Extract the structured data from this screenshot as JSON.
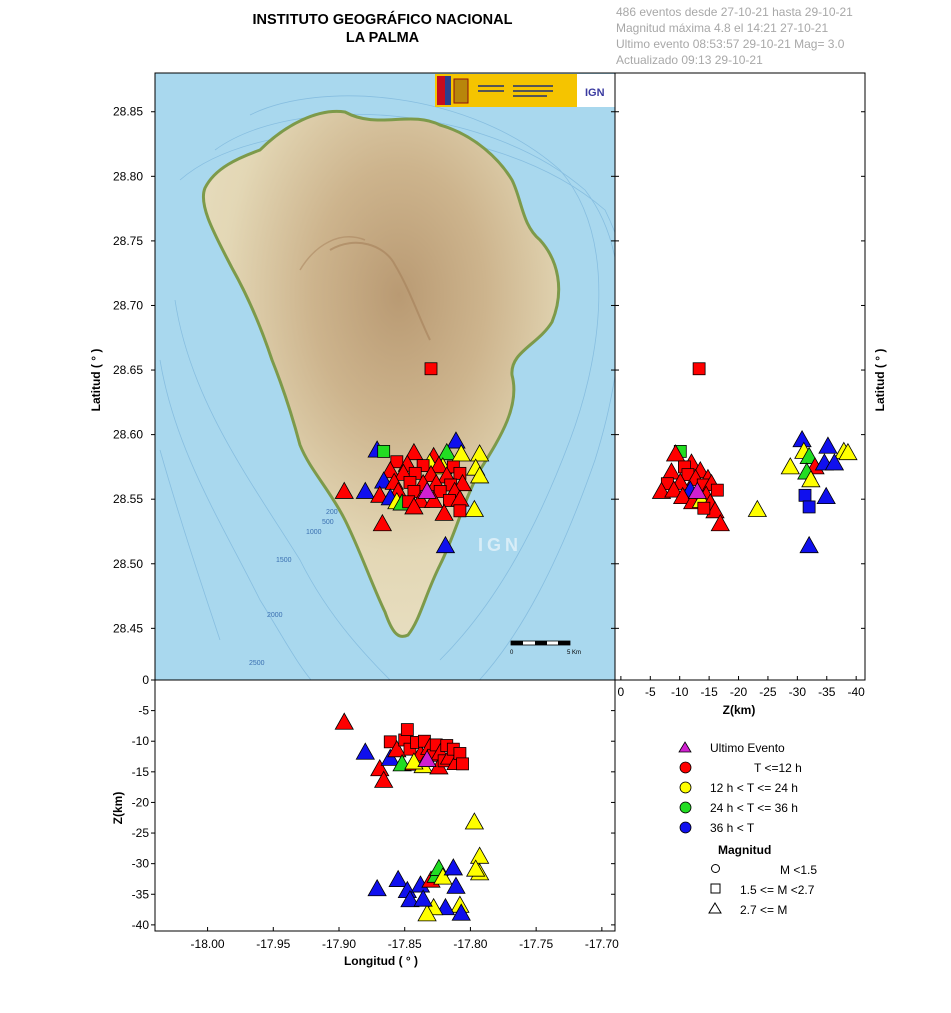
{
  "header": {
    "title_line1": "INSTITUTO GEOGRÁFICO NACIONAL",
    "title_line2": "LA PALMA",
    "info": [
      "486 eventos desde 27-10-21 hasta 29-10-21",
      "Magnitud máxima 4.8 el 14:21 27-10-21",
      "Ultimo evento   08:53:57 29-10-21  Mag= 3.0",
      "Actualizado  09:13  29-10-21"
    ]
  },
  "colors": {
    "ultimo": "#d020d0",
    "t12": "#ff0000",
    "t24": "#ffff00",
    "t36": "#22dd22",
    "t_older": "#1010ee",
    "sea": "#a9d8ee",
    "land": "#e2d6b4"
  },
  "map": {
    "watermark": "IGN",
    "ign_logo": "IGN",
    "contours": [
      "200",
      "500",
      "1000",
      "1500",
      "2000",
      "2500"
    ],
    "scale_start": "0",
    "scale_end": "5 Km"
  },
  "legend": {
    "items": [
      {
        "label": "Ultimo Evento",
        "color_key": "ultimo",
        "shape": "triangle"
      },
      {
        "label": "T <=12 h",
        "color_key": "t12",
        "shape": "circle"
      },
      {
        "label": "12 h  < T <= 24 h",
        "color_key": "t24",
        "shape": "circle"
      },
      {
        "label": "24 h  < T <= 36 h",
        "color_key": "t36",
        "shape": "circle"
      },
      {
        "label": "36 h <  T",
        "color_key": "t_older",
        "shape": "circle"
      }
    ],
    "magnitude_title": "Magnitud",
    "magnitude_items": [
      {
        "label": "M <1.5",
        "shape": "circle"
      },
      {
        "label": "1.5 <= M <2.7",
        "shape": "square"
      },
      {
        "label": "2.7 <= M",
        "shape": "triangle"
      }
    ]
  },
  "chart_data": [
    {
      "type": "scatter",
      "panel": "map",
      "title": "",
      "xlabel": "",
      "ylabel": "Latitud ( ° )",
      "xlim": [
        -18.04,
        -17.69
      ],
      "ylim": [
        28.41,
        28.88
      ],
      "yticks": [
        "28.45",
        "28.50",
        "28.55",
        "28.60",
        "28.65",
        "28.70",
        "28.75",
        "28.80",
        "28.85"
      ],
      "points_fields": [
        "lon",
        "lat",
        "color",
        "shape"
      ],
      "points": [
        [
          -17.83,
          28.651,
          "t12",
          "square"
        ],
        [
          -17.871,
          28.588,
          "t_older",
          "triangle"
        ],
        [
          -17.811,
          28.595,
          "t_older",
          "triangle"
        ],
        [
          -17.818,
          28.586,
          "t36",
          "triangle"
        ],
        [
          -17.807,
          28.585,
          "t24",
          "triangle"
        ],
        [
          -17.793,
          28.585,
          "t24",
          "triangle"
        ],
        [
          -17.866,
          28.587,
          "t36",
          "square"
        ],
        [
          -17.843,
          28.586,
          "t12",
          "triangle"
        ],
        [
          -17.828,
          28.583,
          "t12",
          "triangle"
        ],
        [
          -17.796,
          28.574,
          "t24",
          "triangle"
        ],
        [
          -17.793,
          28.568,
          "t24",
          "triangle"
        ],
        [
          -17.821,
          28.575,
          "t24",
          "triangle"
        ],
        [
          -17.831,
          28.578,
          "t24",
          "triangle"
        ],
        [
          -17.856,
          28.579,
          "t12",
          "square"
        ],
        [
          -17.848,
          28.577,
          "t12",
          "triangle"
        ],
        [
          -17.836,
          28.576,
          "t12",
          "square"
        ],
        [
          -17.824,
          28.576,
          "t12",
          "triangle"
        ],
        [
          -17.813,
          28.575,
          "t12",
          "square"
        ],
        [
          -17.861,
          28.572,
          "t12",
          "triangle"
        ],
        [
          -17.851,
          28.57,
          "t12",
          "triangle"
        ],
        [
          -17.842,
          28.57,
          "t12",
          "square"
        ],
        [
          -17.83,
          28.569,
          "t12",
          "triangle"
        ],
        [
          -17.818,
          28.568,
          "t12",
          "triangle"
        ],
        [
          -17.808,
          28.57,
          "t12",
          "square"
        ],
        [
          -17.866,
          28.564,
          "t_older",
          "triangle"
        ],
        [
          -17.858,
          28.563,
          "t12",
          "triangle"
        ],
        [
          -17.846,
          28.563,
          "t12",
          "square"
        ],
        [
          -17.836,
          28.562,
          "t12",
          "triangle"
        ],
        [
          -17.826,
          28.562,
          "t12",
          "triangle"
        ],
        [
          -17.815,
          28.561,
          "t12",
          "square"
        ],
        [
          -17.806,
          28.562,
          "t12",
          "triangle"
        ],
        [
          -17.855,
          28.556,
          "t12",
          "triangle"
        ],
        [
          -17.843,
          28.556,
          "t12",
          "square"
        ],
        [
          -17.823,
          28.556,
          "t12",
          "square"
        ],
        [
          -17.812,
          28.556,
          "t12",
          "triangle"
        ],
        [
          -17.833,
          28.556,
          "ultimo",
          "triangle"
        ],
        [
          -17.896,
          28.556,
          "t12",
          "triangle"
        ],
        [
          -17.88,
          28.556,
          "t_older",
          "triangle"
        ],
        [
          -17.869,
          28.553,
          "t12",
          "triangle"
        ],
        [
          -17.861,
          28.551,
          "t_older",
          "triangle"
        ],
        [
          -17.856,
          28.548,
          "t24",
          "triangle"
        ],
        [
          -17.852,
          28.547,
          "t36",
          "triangle"
        ],
        [
          -17.847,
          28.548,
          "t12",
          "square"
        ],
        [
          -17.838,
          28.549,
          "t12",
          "triangle"
        ],
        [
          -17.828,
          28.549,
          "t12",
          "triangle"
        ],
        [
          -17.816,
          28.549,
          "t12",
          "square"
        ],
        [
          -17.808,
          28.55,
          "t12",
          "triangle"
        ],
        [
          -17.843,
          28.544,
          "t12",
          "triangle"
        ],
        [
          -17.797,
          28.542,
          "t24",
          "triangle"
        ],
        [
          -17.82,
          28.539,
          "t12",
          "triangle"
        ],
        [
          -17.808,
          28.541,
          "t12",
          "square"
        ],
        [
          -17.867,
          28.531,
          "t12",
          "triangle"
        ],
        [
          -17.819,
          28.514,
          "t_older",
          "triangle"
        ]
      ]
    },
    {
      "type": "scatter",
      "panel": "depth-vs-latitude",
      "xlabel": "Z(km)",
      "ylabel": "Latitud ( ° )",
      "xlim": [
        1,
        -41.5
      ],
      "ylim": [
        28.41,
        28.88
      ],
      "xticks": [
        "0",
        "-5",
        "-10",
        "-15",
        "-20",
        "-25",
        "-30",
        "-35",
        "-40"
      ],
      "points_fields": [
        "z",
        "lat",
        "color",
        "shape"
      ],
      "points": [
        [
          -13.3,
          28.651,
          "t12",
          "square"
        ],
        [
          -10.1,
          28.587,
          "t36",
          "square"
        ],
        [
          -9.3,
          28.585,
          "t12",
          "triangle"
        ],
        [
          -12.0,
          28.578,
          "t12",
          "triangle"
        ],
        [
          -10.8,
          28.575,
          "t12",
          "square"
        ],
        [
          -13.5,
          28.572,
          "t12",
          "triangle"
        ],
        [
          -14.8,
          28.566,
          "t12",
          "triangle"
        ],
        [
          -8.6,
          28.571,
          "t12",
          "triangle"
        ],
        [
          -11.4,
          28.569,
          "t12",
          "square"
        ],
        [
          -12.7,
          28.566,
          "t12",
          "triangle"
        ],
        [
          -7.9,
          28.562,
          "t12",
          "square"
        ],
        [
          -10.1,
          28.563,
          "t12",
          "triangle"
        ],
        [
          -14.0,
          28.561,
          "t12",
          "square"
        ],
        [
          -15.4,
          28.562,
          "t12",
          "triangle"
        ],
        [
          -6.9,
          28.556,
          "t12",
          "triangle"
        ],
        [
          -9.0,
          28.557,
          "t12",
          "triangle"
        ],
        [
          -11.8,
          28.557,
          "t_older",
          "triangle"
        ],
        [
          -13.0,
          28.556,
          "ultimo",
          "triangle"
        ],
        [
          -14.5,
          28.553,
          "t12",
          "triangle"
        ],
        [
          -16.4,
          28.557,
          "t12",
          "square"
        ],
        [
          -10.5,
          28.552,
          "t12",
          "triangle"
        ],
        [
          -12.2,
          28.548,
          "t12",
          "triangle"
        ],
        [
          -13.7,
          28.549,
          "t24",
          "triangle"
        ],
        [
          -15.2,
          28.547,
          "t12",
          "triangle"
        ],
        [
          -16.0,
          28.541,
          "t12",
          "triangle"
        ],
        [
          -14.1,
          28.543,
          "t12",
          "square"
        ],
        [
          -16.9,
          28.531,
          "t12",
          "triangle"
        ],
        [
          -23.2,
          28.542,
          "t24",
          "triangle"
        ],
        [
          -30.8,
          28.596,
          "t_older",
          "triangle"
        ],
        [
          -35.2,
          28.591,
          "t_older",
          "triangle"
        ],
        [
          -31.1,
          28.587,
          "t24",
          "triangle"
        ],
        [
          -37.9,
          28.587,
          "t24",
          "triangle"
        ],
        [
          -38.6,
          28.586,
          "t24",
          "triangle"
        ],
        [
          -32.0,
          28.583,
          "t36",
          "triangle"
        ],
        [
          -28.8,
          28.575,
          "t24",
          "triangle"
        ],
        [
          -33.0,
          28.575,
          "t12",
          "triangle"
        ],
        [
          -34.6,
          28.578,
          "t_older",
          "triangle"
        ],
        [
          -36.3,
          28.578,
          "t_older",
          "triangle"
        ],
        [
          -31.6,
          28.571,
          "t36",
          "triangle"
        ],
        [
          -32.3,
          28.565,
          "t24",
          "triangle"
        ],
        [
          -31.3,
          28.553,
          "t_older",
          "square"
        ],
        [
          -34.9,
          28.552,
          "t_older",
          "triangle"
        ],
        [
          -32.0,
          28.544,
          "t_older",
          "square"
        ],
        [
          -32.0,
          28.514,
          "t_older",
          "triangle"
        ]
      ]
    },
    {
      "type": "scatter",
      "panel": "longitude-vs-depth",
      "xlabel": "Longitud ( ° )",
      "ylabel": "Z(km)",
      "xlim": [
        -18.04,
        -17.69
      ],
      "ylim": [
        -41,
        0
      ],
      "xticks": [
        "-18.00",
        "-17.95",
        "-17.90",
        "-17.85",
        "-17.80",
        "-17.75",
        "-17.70"
      ],
      "yticks": [
        "0",
        "-5",
        "-10",
        "-15",
        "-20",
        "-25",
        "-30",
        "-35",
        "-40"
      ],
      "points_fields": [
        "lon",
        "z",
        "color",
        "shape"
      ],
      "points": [
        [
          -17.896,
          -6.9,
          "t12",
          "triangle"
        ],
        [
          -17.88,
          -11.8,
          "t_older",
          "triangle"
        ],
        [
          -17.869,
          -14.5,
          "t12",
          "triangle"
        ],
        [
          -17.866,
          -16.4,
          "t12",
          "triangle"
        ],
        [
          -17.861,
          -12.8,
          "t_older",
          "triangle"
        ],
        [
          -17.861,
          -10.1,
          "t12",
          "square"
        ],
        [
          -17.856,
          -11.4,
          "t12",
          "triangle"
        ],
        [
          -17.852,
          -13.7,
          "t36",
          "triangle"
        ],
        [
          -17.85,
          -9.8,
          "t12",
          "square"
        ],
        [
          -17.848,
          -8.1,
          "t12",
          "square"
        ],
        [
          -17.846,
          -11.3,
          "t12",
          "square"
        ],
        [
          -17.843,
          -13.6,
          "t12",
          "triangle"
        ],
        [
          -17.841,
          -10.2,
          "t12",
          "square"
        ],
        [
          -17.838,
          -12.1,
          "t12",
          "triangle"
        ],
        [
          -17.836,
          -14.0,
          "t24",
          "triangle"
        ],
        [
          -17.835,
          -10.0,
          "t12",
          "square"
        ],
        [
          -17.833,
          -13.0,
          "ultimo",
          "triangle"
        ],
        [
          -17.831,
          -11.0,
          "t12",
          "triangle"
        ],
        [
          -17.828,
          -12.3,
          "t12",
          "square"
        ],
        [
          -17.826,
          -10.6,
          "t12",
          "square"
        ],
        [
          -17.824,
          -14.2,
          "t12",
          "triangle"
        ],
        [
          -17.823,
          -11.9,
          "t12",
          "triangle"
        ],
        [
          -17.82,
          -13.2,
          "t12",
          "square"
        ],
        [
          -17.818,
          -10.7,
          "t12",
          "square"
        ],
        [
          -17.816,
          -12.6,
          "t12",
          "triangle"
        ],
        [
          -17.813,
          -11.3,
          "t12",
          "square"
        ],
        [
          -17.811,
          -13.5,
          "t12",
          "triangle"
        ],
        [
          -17.808,
          -12.0,
          "t12",
          "square"
        ],
        [
          -17.806,
          -13.7,
          "t12",
          "square"
        ],
        [
          -17.843,
          -13.4,
          "t24",
          "triangle"
        ],
        [
          -17.797,
          -23.2,
          "t24",
          "triangle"
        ],
        [
          -17.793,
          -28.8,
          "t24",
          "triangle"
        ],
        [
          -17.793,
          -31.5,
          "t24",
          "triangle"
        ],
        [
          -17.796,
          -30.9,
          "t24",
          "triangle"
        ],
        [
          -17.871,
          -34.1,
          "t_older",
          "triangle"
        ],
        [
          -17.855,
          -32.6,
          "t_older",
          "triangle"
        ],
        [
          -17.848,
          -34.4,
          "t_older",
          "triangle"
        ],
        [
          -17.846,
          -35.9,
          "t_older",
          "triangle"
        ],
        [
          -17.838,
          -33.5,
          "t_older",
          "triangle"
        ],
        [
          -17.83,
          -32.7,
          "t12",
          "triangle"
        ],
        [
          -17.826,
          -31.9,
          "t36",
          "triangle"
        ],
        [
          -17.824,
          -30.8,
          "t36",
          "triangle"
        ],
        [
          -17.821,
          -32.2,
          "t24",
          "triangle"
        ],
        [
          -17.813,
          -30.7,
          "t_older",
          "triangle"
        ],
        [
          -17.811,
          -33.7,
          "t_older",
          "triangle"
        ],
        [
          -17.808,
          -36.8,
          "t24",
          "triangle"
        ],
        [
          -17.807,
          -38.1,
          "t_older",
          "triangle"
        ],
        [
          -17.819,
          -37.2,
          "t_older",
          "triangle"
        ],
        [
          -17.828,
          -37.2,
          "t24",
          "triangle"
        ],
        [
          -17.833,
          -38.2,
          "t24",
          "triangle"
        ],
        [
          -17.836,
          -35.8,
          "t_older",
          "triangle"
        ]
      ]
    }
  ]
}
